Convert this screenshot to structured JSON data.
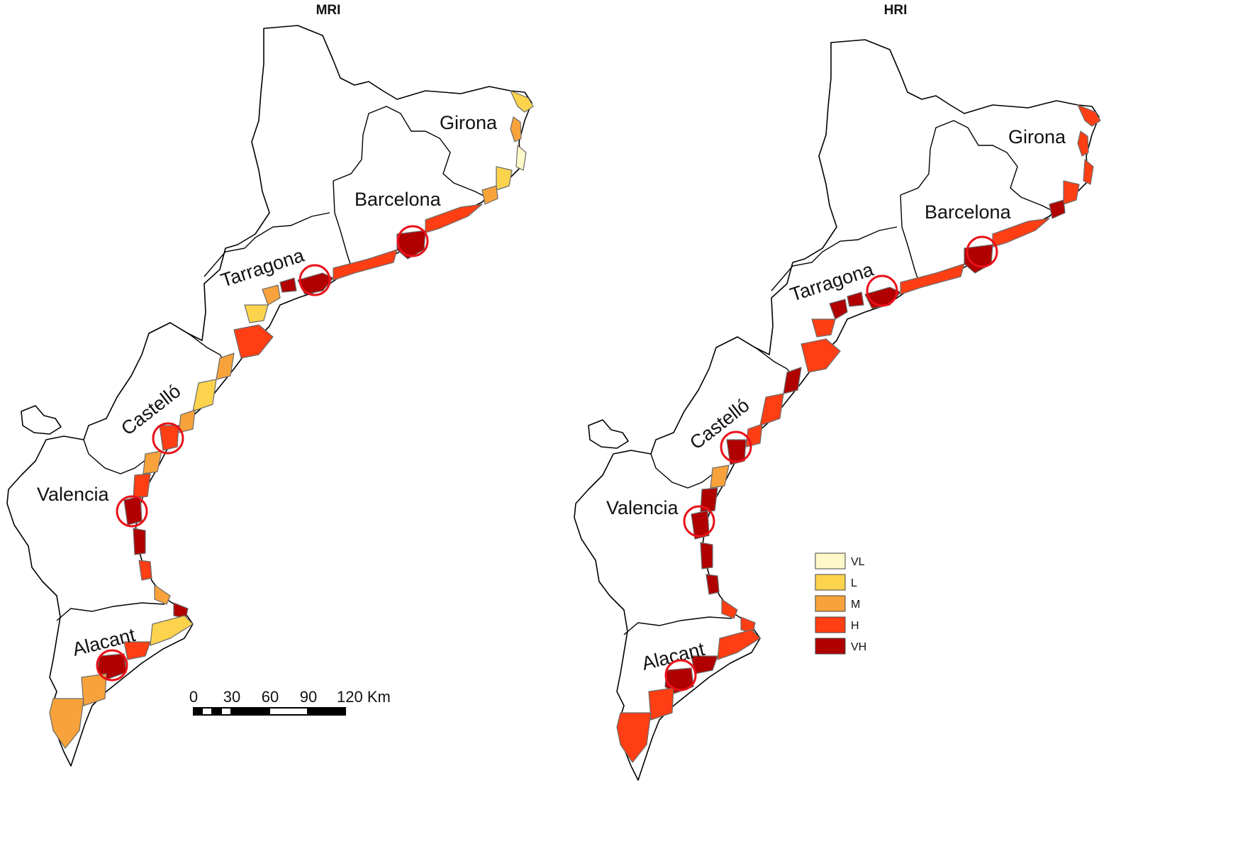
{
  "maps": [
    {
      "title": "MRI",
      "provinces": [
        "Girona",
        "Barcelona",
        "Tarragona",
        "Castelló",
        "Valencia",
        "Alacant"
      ]
    },
    {
      "title": "HRI",
      "provinces": [
        "Girona",
        "Barcelona",
        "Tarragona",
        "Castelló",
        "Valencia",
        "Alacant"
      ]
    }
  ],
  "scale_bar": {
    "ticks": [
      "0",
      "30",
      "60",
      "90",
      "120 Km"
    ]
  },
  "legend": {
    "items": [
      {
        "label": "VL",
        "color": "#fff9c9"
      },
      {
        "label": "L",
        "color": "#fcd34d"
      },
      {
        "label": "M",
        "color": "#f7a23a"
      },
      {
        "label": "H",
        "color": "#ff3e14"
      },
      {
        "label": "VH",
        "color": "#b00000"
      }
    ]
  },
  "colors": {
    "VL": "#fff9c9",
    "L": "#fcd34d",
    "M": "#f7a23a",
    "H": "#ff3e14",
    "VH": "#b00000",
    "circle": "#e8121a"
  }
}
